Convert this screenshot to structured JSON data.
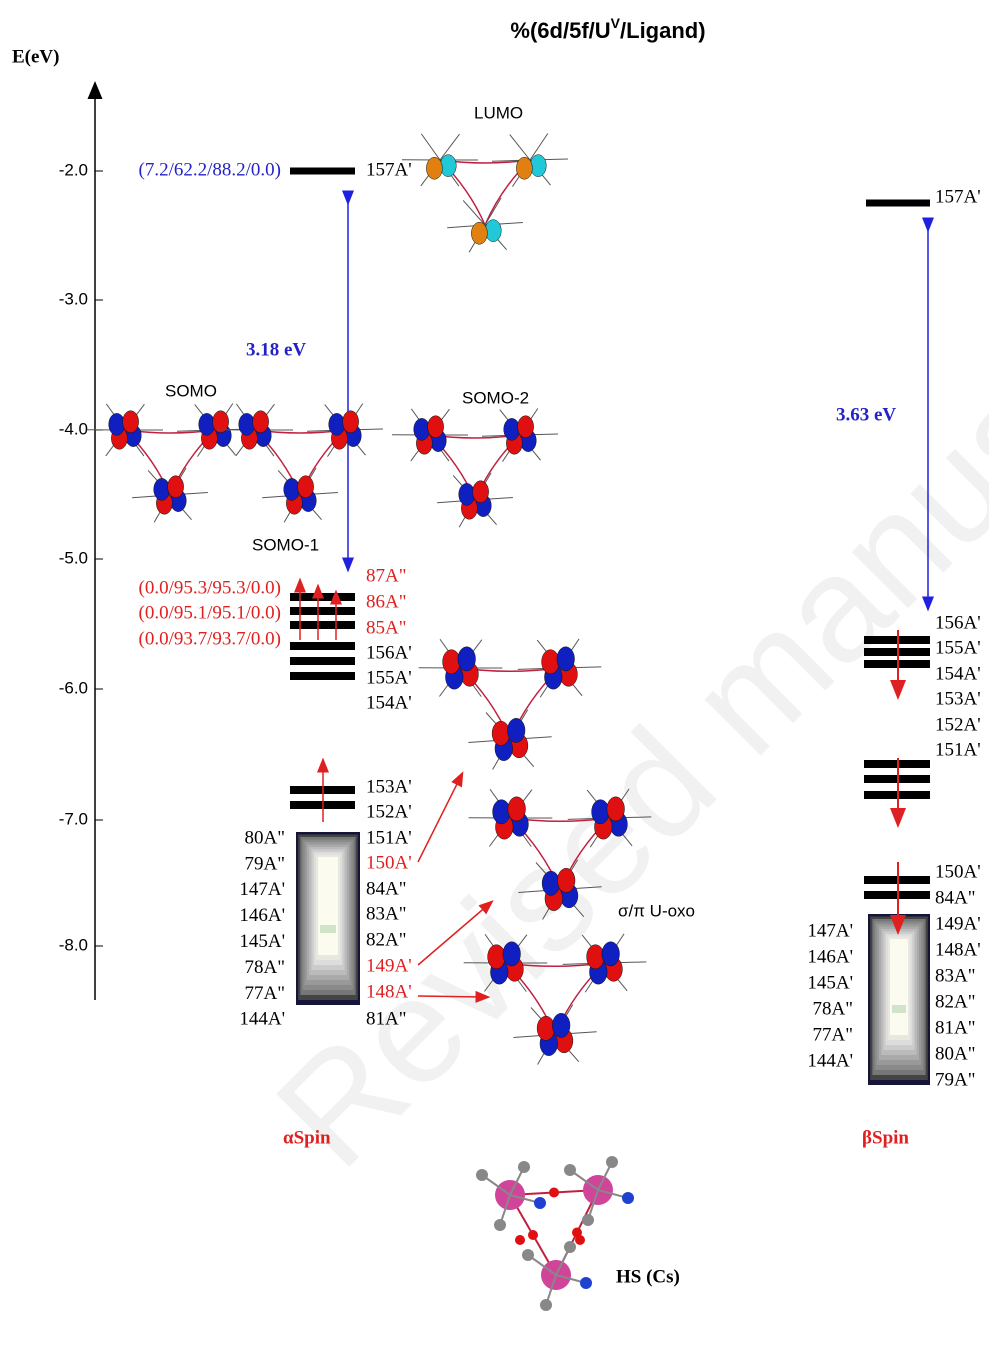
{
  "title": {
    "text": "%(6d/5f/U",
    "superscript": "V",
    "suffix": "/Ligand)"
  },
  "energy_axis": {
    "label": "E(eV)",
    "ticks": [
      "-2.0",
      "-3.0",
      "-4.0",
      "-5.0",
      "-6.0",
      "-7.0",
      "-8.0"
    ]
  },
  "orbital_labels": [
    "LUMO",
    "SOMO",
    "SOMO-1",
    "SOMO-2",
    "σ/π U-oxo"
  ],
  "alpha": {
    "title": "αSpin",
    "gap": "3.18 eV",
    "compositions": [
      {
        "text": "(7.2/62.2/88.2/0.0)",
        "color": "#2323c8"
      },
      {
        "text": "(0.0/95.3/95.3/0.0)",
        "color": "#e02020"
      },
      {
        "text": "(0.0/95.1/95.1/0.0)",
        "color": "#e02020"
      },
      {
        "text": "(0.0/93.7/93.7/0.0)",
        "color": "#e02020"
      }
    ],
    "right_labels": [
      {
        "text": "157A'",
        "color": "#000000"
      },
      {
        "text": "87A\"",
        "color": "#e02020"
      },
      {
        "text": "86A\"",
        "color": "#e02020"
      },
      {
        "text": "85A\"",
        "color": "#e02020"
      },
      {
        "text": "156A'",
        "color": "#000000"
      },
      {
        "text": "155A'",
        "color": "#000000"
      },
      {
        "text": "154A'",
        "color": "#000000"
      },
      {
        "text": "153A'",
        "color": "#000000"
      },
      {
        "text": "152A'",
        "color": "#000000"
      },
      {
        "text": "151A'",
        "color": "#000000"
      },
      {
        "text": "150A'",
        "color": "#e02020"
      },
      {
        "text": "84A\"",
        "color": "#000000"
      },
      {
        "text": "83A\"",
        "color": "#000000"
      },
      {
        "text": "82A\"",
        "color": "#000000"
      },
      {
        "text": "149A'",
        "color": "#e02020"
      },
      {
        "text": "148A'",
        "color": "#e02020"
      },
      {
        "text": "81A\"",
        "color": "#000000"
      }
    ],
    "left_labels": [
      "80A\"",
      "79A\"",
      "147A'",
      "146A'",
      "145A'",
      "78A\"",
      "77A\"",
      "144A'"
    ]
  },
  "beta": {
    "title": "βSpin",
    "gap": "3.63 eV",
    "right_labels": [
      "157A'",
      "156A'",
      "155A'",
      "154A'",
      "153A'",
      "152A'",
      "151A'",
      "150A'",
      "84A\"",
      "149A'",
      "148A'",
      "83A\"",
      "82A\"",
      "81A\"",
      "80A\"",
      "79A\""
    ],
    "left_labels": [
      "147A'",
      "146A'",
      "145A'",
      "78A\"",
      "77A\"",
      "144A'"
    ]
  },
  "structure_label": "HS (Cs)",
  "watermark": "Revised manuscript"
}
